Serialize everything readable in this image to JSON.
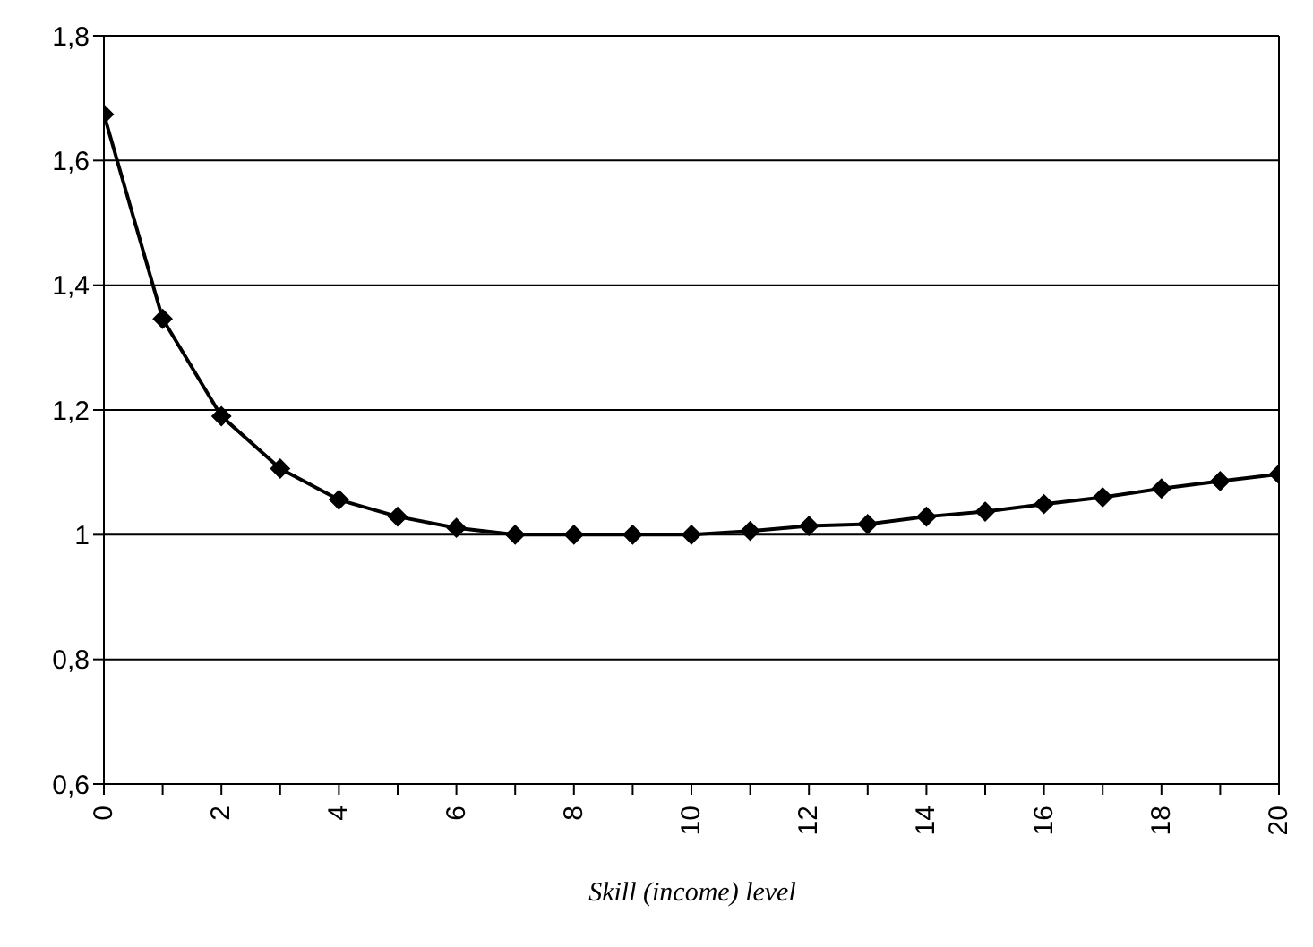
{
  "chart_data": {
    "type": "line",
    "xlabel": "Skill (income) level",
    "x": [
      0,
      1,
      2,
      3,
      4,
      5,
      6,
      7,
      8,
      9,
      10,
      11,
      12,
      13,
      14,
      15,
      16,
      17,
      18,
      19,
      20
    ],
    "series": [
      {
        "color": "#000000",
        "values": [
          1.674,
          1.346,
          1.19,
          1.106,
          1.056,
          1.029,
          1.011,
          1.0,
          1.0,
          1.0,
          1.0,
          1.006,
          1.014,
          1.017,
          1.029,
          1.037,
          1.049,
          1.06,
          1.074,
          1.086,
          1.097
        ]
      }
    ],
    "xlim": [
      0,
      20
    ],
    "xticks": [
      0,
      {
        "value": 1,
        "label": null
      },
      2,
      {
        "value": 3,
        "label": null
      },
      4,
      {
        "value": 5,
        "label": null
      },
      6,
      {
        "value": 7,
        "label": null
      },
      8,
      {
        "value": 9,
        "label": null
      },
      10,
      {
        "value": 11,
        "label": null
      },
      12,
      {
        "value": 13,
        "label": null
      },
      14,
      {
        "value": 15,
        "label": null
      },
      16,
      {
        "value": 17,
        "label": null
      },
      18,
      {
        "value": 19,
        "label": null
      },
      20
    ],
    "ylim": [
      0.6,
      1.8
    ],
    "yticks": [
      {
        "value": 0.6,
        "label": "0,6"
      },
      {
        "value": 0.8,
        "label": "0,8"
      },
      {
        "value": 1,
        "label": "1"
      },
      {
        "value": 1.2,
        "label": "1,2"
      },
      {
        "value": 1.4,
        "label": "1,4"
      },
      {
        "value": 1.6,
        "label": "1,6"
      },
      {
        "value": 1.8,
        "label": "1,8"
      }
    ],
    "grid": "y",
    "marker": "diamond",
    "line_style": "solid"
  }
}
